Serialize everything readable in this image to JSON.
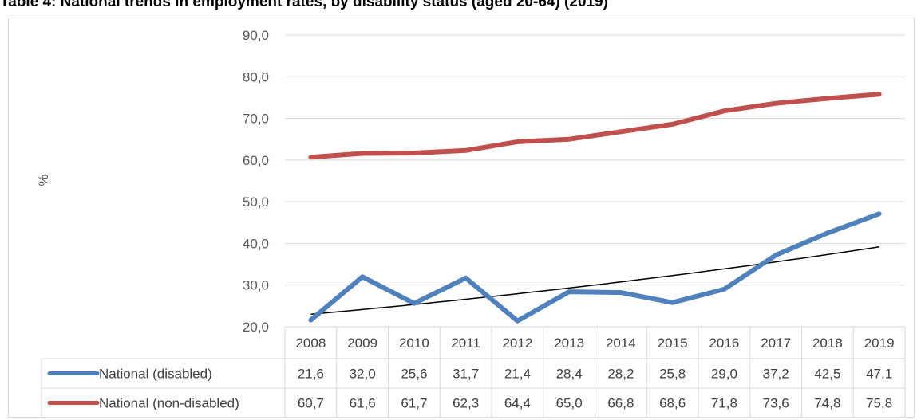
{
  "chart_data": {
    "type": "line",
    "title": "Table 4: National trends in employment rates, by disability status (aged 20-64) (2019)",
    "ylabel": "%",
    "xlabel": "",
    "ylim": [
      20,
      90
    ],
    "yticks": [
      "20,0",
      "30,0",
      "40,0",
      "50,0",
      "60,0",
      "70,0",
      "80,0",
      "90,0"
    ],
    "grid": true,
    "legend": "data-table",
    "categories": [
      "2008",
      "2009",
      "2010",
      "2011",
      "2012",
      "2013",
      "2014",
      "2015",
      "2016",
      "2017",
      "2018",
      "2019"
    ],
    "series": [
      {
        "name": "National (disabled)",
        "color": "#4f81bd",
        "values": [
          21.6,
          32.0,
          25.6,
          31.7,
          21.4,
          28.4,
          28.2,
          25.8,
          29.0,
          37.2,
          42.5,
          47.1
        ],
        "labels": [
          "21,6",
          "32,0",
          "25,6",
          "31,7",
          "21,4",
          "28,4",
          "28,2",
          "25,8",
          "29,0",
          "37,2",
          "42,5",
          "47,1"
        ]
      },
      {
        "name": "National (non-disabled)",
        "color": "#c0504d",
        "values": [
          60.7,
          61.6,
          61.7,
          62.3,
          64.4,
          65.0,
          66.8,
          68.6,
          71.8,
          73.6,
          74.8,
          75.8
        ],
        "labels": [
          "60,7",
          "61,6",
          "61,7",
          "62,3",
          "64,4",
          "65,0",
          "66,8",
          "68,6",
          "71,8",
          "73,6",
          "74,8",
          "75,8"
        ]
      }
    ],
    "trendline": {
      "series": "National (disabled)",
      "type": "exponential",
      "color": "#000000"
    }
  }
}
